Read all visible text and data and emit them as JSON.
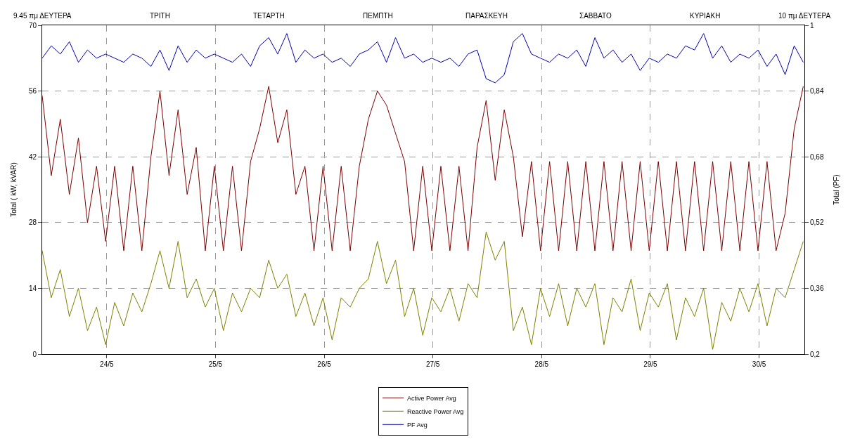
{
  "chart_data": {
    "type": "line",
    "annotations": [
      "9.45 πμ ΔΕΥΤΕΡΑ",
      "ΤΡΙΤΗ",
      "ΤΕΤΑΡΤΗ",
      "ΠΕΜΠΤΗ",
      "ΠΑΡΑΣΚΕΥΗ",
      "ΣΑΒΒΑΤΟ",
      "ΚΥΡΙΑΚΗ",
      "10 πμ ΔΕΥΤΕΡΑ"
    ],
    "ylabel": "Total ( kW, kVAR)",
    "y2label": "Total (PF)",
    "x": [
      "--05-23T09:45",
      "--05-23T11:45",
      "--05-23T13:45",
      "--05-23T15:45",
      "--05-23T17:45",
      "--05-23T19:45",
      "--05-23T21:45",
      "--05-23T23:45",
      "--05-24T01:45",
      "--05-24T03:45",
      "--05-24T05:45",
      "--05-24T07:45",
      "--05-24T09:45",
      "--05-24T11:45",
      "--05-24T13:45",
      "--05-24T15:45",
      "--05-24T17:45",
      "--05-24T19:45",
      "--05-24T21:45",
      "--05-24T23:45",
      "--05-25T01:45",
      "--05-25T03:45",
      "--05-25T05:45",
      "--05-25T07:45",
      "--05-25T09:45",
      "--05-25T11:45",
      "--05-25T13:45",
      "--05-25T15:45",
      "--05-25T17:45",
      "--05-25T19:45",
      "--05-25T21:45",
      "--05-25T23:45",
      "--05-26T01:45",
      "--05-26T03:45",
      "--05-26T05:45",
      "--05-26T07:45",
      "--05-26T09:45",
      "--05-26T11:45",
      "--05-26T13:45",
      "--05-26T15:45",
      "--05-26T17:45",
      "--05-26T19:45",
      "--05-26T21:45",
      "--05-26T23:45",
      "--05-27T01:45",
      "--05-27T03:45",
      "--05-27T05:45",
      "--05-27T07:45",
      "--05-27T09:45",
      "--05-27T11:45",
      "--05-27T13:45",
      "--05-27T15:45",
      "--05-27T17:45",
      "--05-27T19:45",
      "--05-27T21:45",
      "--05-27T23:45",
      "--05-28T01:45",
      "--05-28T03:45",
      "--05-28T05:45",
      "--05-28T07:45",
      "--05-28T09:45",
      "--05-28T11:45",
      "--05-28T13:45",
      "--05-28T15:45",
      "--05-28T17:45",
      "--05-28T19:45",
      "--05-28T21:45",
      "--05-28T23:45",
      "--05-29T01:45",
      "--05-29T03:45",
      "--05-29T05:45",
      "--05-29T07:45",
      "--05-29T09:45",
      "--05-29T11:45",
      "--05-29T13:45",
      "--05-29T15:45",
      "--05-29T17:45",
      "--05-29T19:45",
      "--05-29T21:45",
      "--05-29T23:45",
      "--05-30T01:45",
      "--05-30T03:45",
      "--05-30T05:45",
      "--05-30T07:45",
      "--05-30T09:45"
    ],
    "series": [
      {
        "name": "Active Power Avg",
        "color": "#7b0000",
        "values": [
          55,
          38,
          50,
          34,
          46,
          28,
          40,
          24,
          40,
          22,
          40,
          22,
          42,
          56,
          38,
          52,
          34,
          44,
          22,
          40,
          22,
          40,
          22,
          41,
          48,
          57,
          45,
          52,
          34,
          40,
          22,
          40,
          22,
          40,
          22,
          40,
          50,
          56,
          53,
          47,
          41,
          22,
          40,
          22,
          40,
          22,
          40,
          22,
          44,
          54,
          37,
          52,
          42,
          25,
          41,
          22,
          41,
          22,
          41,
          22,
          41,
          22,
          41,
          22,
          41,
          22,
          41,
          22,
          41,
          22,
          41,
          22,
          41,
          22,
          41,
          22,
          41,
          22,
          41,
          22,
          41,
          22,
          30,
          48,
          57
        ]
      },
      {
        "name": "Reactive Power Avg",
        "color": "#808000",
        "values": [
          22,
          12,
          18,
          8,
          14,
          5,
          10,
          2,
          11,
          6,
          13,
          9,
          15,
          22,
          14,
          24,
          12,
          16,
          10,
          14,
          5,
          13,
          9,
          14,
          12,
          20,
          14,
          17,
          8,
          13,
          6,
          12,
          3,
          12,
          10,
          14,
          16,
          24,
          15,
          20,
          8,
          14,
          4,
          12,
          9,
          14,
          7,
          15,
          12,
          26,
          20,
          24,
          5,
          10,
          2,
          14,
          8,
          15,
          6,
          14,
          10,
          15,
          2,
          12,
          9,
          16,
          5,
          13,
          10,
          15,
          3,
          12,
          8,
          14,
          1,
          11,
          7,
          14,
          9,
          15,
          6,
          14,
          12,
          18,
          24
        ]
      },
      {
        "name": "PF Avg",
        "color": "#0000b0",
        "axis": "y2",
        "values": [
          0.92,
          0.95,
          0.93,
          0.96,
          0.91,
          0.94,
          0.92,
          0.93,
          0.92,
          0.91,
          0.93,
          0.92,
          0.9,
          0.94,
          0.89,
          0.95,
          0.91,
          0.94,
          0.92,
          0.93,
          0.92,
          0.91,
          0.93,
          0.9,
          0.95,
          0.97,
          0.93,
          0.98,
          0.91,
          0.94,
          0.92,
          0.93,
          0.91,
          0.92,
          0.9,
          0.93,
          0.94,
          0.96,
          0.91,
          0.97,
          0.92,
          0.93,
          0.91,
          0.92,
          0.91,
          0.92,
          0.9,
          0.93,
          0.94,
          0.87,
          0.86,
          0.88,
          0.96,
          0.98,
          0.93,
          0.92,
          0.91,
          0.93,
          0.92,
          0.94,
          0.9,
          0.97,
          0.92,
          0.94,
          0.91,
          0.93,
          0.89,
          0.92,
          0.91,
          0.93,
          0.92,
          0.95,
          0.94,
          0.98,
          0.92,
          0.95,
          0.91,
          0.93,
          0.92,
          0.94,
          0.9,
          0.93,
          0.88,
          0.95,
          0.91
        ]
      }
    ],
    "xlim": [
      "--05-23T09:45",
      "--05-30T10:00"
    ],
    "xticks": [
      {
        "value": "--05-24",
        "label": "24/5"
      },
      {
        "value": "--05-25",
        "label": "25/5"
      },
      {
        "value": "--05-26",
        "label": "26/5"
      },
      {
        "value": "--05-27",
        "label": "27/5"
      },
      {
        "value": "--05-28",
        "label": "28/5"
      },
      {
        "value": "--05-29",
        "label": "29/5"
      },
      {
        "value": "--05-30",
        "label": "30/5"
      }
    ],
    "ylim": [
      0,
      70
    ],
    "yticks": [
      0,
      14,
      28,
      42,
      56,
      70
    ],
    "y2lim": [
      0.2,
      1
    ],
    "y2ticks": [
      {
        "value": 0.2,
        "label": "0,2"
      },
      {
        "value": 0.36,
        "label": "0,36"
      },
      {
        "value": 0.52,
        "label": "0,52"
      },
      {
        "value": 0.68,
        "label": "0,68"
      },
      {
        "value": 0.84,
        "label": "0,84"
      },
      {
        "value": 1,
        "label": "1"
      }
    ],
    "grid": true,
    "legend": "bottom",
    "marker": "none",
    "line_style": "solid"
  }
}
